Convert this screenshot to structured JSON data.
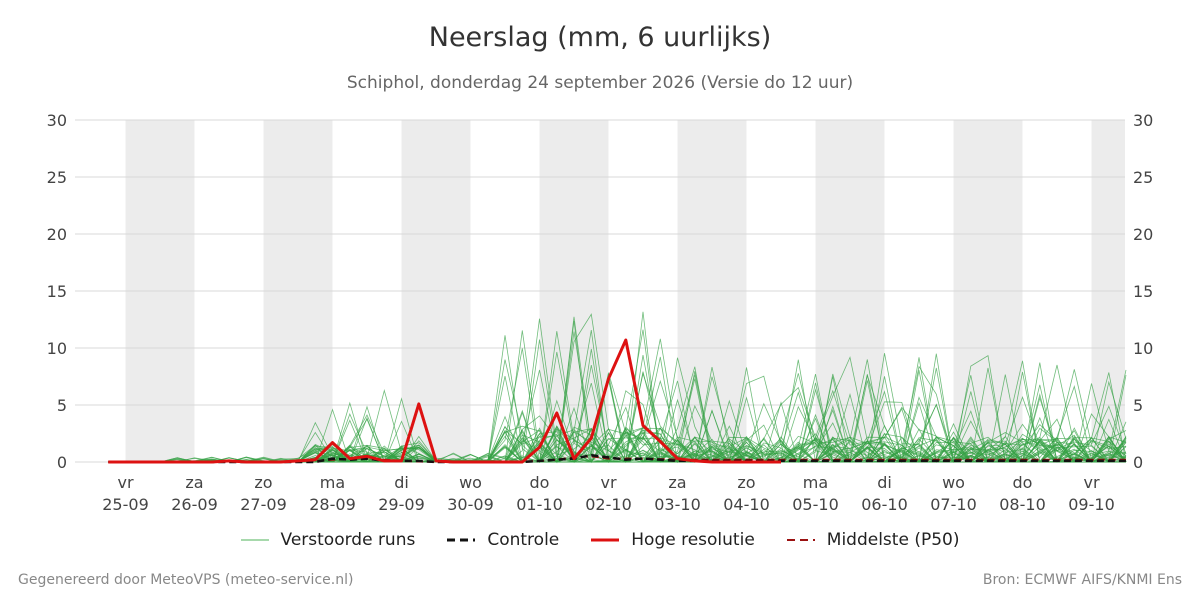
{
  "title": "Neerslag (mm, 6 uurlijks)",
  "subtitle": "Schiphol, donderdag 24 september 2026 (Versie do 12 uur)",
  "footer": {
    "left": "Gegenereerd door MeteoVPS (meteo-service.nl)",
    "right": "Bron: ECMWF AIFS/KNMI Ens"
  },
  "legend": [
    {
      "label": "Verstoorde runs",
      "color": "#2e9e3e",
      "style": "thin"
    },
    {
      "label": "Controle",
      "color": "#111111",
      "style": "dashed"
    },
    {
      "label": "Hoge resolutie",
      "color": "#dd1111",
      "style": "solid"
    },
    {
      "label": "Middelste (P50)",
      "color": "#9b1111",
      "style": "dashed"
    }
  ],
  "chart_data": {
    "type": "line",
    "ylim": [
      0,
      30
    ],
    "yticks": [
      0,
      5,
      10,
      15,
      20,
      25,
      30
    ],
    "xlim": [
      -0.25,
      14.5
    ],
    "x_step_days": 0.25,
    "grid": true,
    "weekend_shading": true,
    "shaded_day_spans": [
      [
        0,
        1
      ],
      [
        2,
        3
      ],
      [
        4,
        5
      ],
      [
        6,
        7
      ],
      [
        8,
        9
      ],
      [
        10,
        11
      ],
      [
        12,
        13
      ],
      [
        14,
        14.5
      ]
    ],
    "x_ticks": [
      {
        "day": "vr",
        "date": "25-09"
      },
      {
        "day": "za",
        "date": "26-09"
      },
      {
        "day": "zo",
        "date": "27-09"
      },
      {
        "day": "ma",
        "date": "28-09"
      },
      {
        "day": "di",
        "date": "29-09"
      },
      {
        "day": "wo",
        "date": "30-09"
      },
      {
        "day": "do",
        "date": "01-10"
      },
      {
        "day": "vr",
        "date": "02-10"
      },
      {
        "day": "za",
        "date": "03-10"
      },
      {
        "day": "zo",
        "date": "04-10"
      },
      {
        "day": "ma",
        "date": "05-10"
      },
      {
        "day": "di",
        "date": "06-10"
      },
      {
        "day": "wo",
        "date": "07-10"
      },
      {
        "day": "do",
        "date": "08-10"
      },
      {
        "day": "vr",
        "date": "09-10"
      }
    ],
    "series": [
      {
        "name": "Hoge resolutie",
        "color": "#dd1111",
        "dash": "",
        "width": 3,
        "x": [
          -0.25,
          0,
          0.25,
          0.5,
          0.75,
          1,
          1.25,
          1.5,
          1.75,
          2,
          2.25,
          2.5,
          2.75,
          3,
          3.25,
          3.5,
          3.75,
          4,
          4.25,
          4.5,
          4.75,
          5,
          5.25,
          5.5,
          5.75,
          6,
          6.25,
          6.5,
          6.75,
          7,
          7.25,
          7.5,
          7.75,
          8,
          8.25,
          8.5,
          8.75,
          9,
          9.25,
          9.5
        ],
        "values": [
          0,
          0,
          0,
          0,
          0,
          0,
          0,
          0.1,
          0,
          0,
          0,
          0.1,
          0.2,
          1.7,
          0.3,
          0.5,
          0.1,
          0.1,
          5.1,
          0.1,
          0,
          0,
          0,
          0,
          0,
          1.3,
          4.3,
          0.3,
          2.1,
          7.3,
          10.7,
          3.2,
          1.8,
          0.3,
          0.1,
          0,
          0,
          0,
          0,
          0
        ]
      },
      {
        "name": "Controle",
        "color": "#111111",
        "dash": "7,4",
        "width": 2.5,
        "x": [
          -0.25,
          0,
          0.25,
          0.5,
          0.75,
          1,
          1.25,
          1.5,
          1.75,
          2,
          2.25,
          2.5,
          2.75,
          3,
          3.25,
          3.5,
          3.75,
          4,
          4.25,
          4.5,
          4.75,
          5,
          5.25,
          5.5,
          5.75,
          6,
          6.25,
          6.5,
          6.75,
          7,
          7.25,
          7.5,
          7.75,
          8,
          8.5,
          9,
          9.5,
          10,
          10.5,
          11,
          11.5,
          12,
          12.5,
          13,
          13.5,
          14,
          14.5
        ],
        "values": [
          0,
          0,
          0,
          0,
          0,
          0,
          0,
          0,
          0,
          0,
          0,
          0,
          0,
          0.3,
          0.2,
          0.3,
          0.1,
          0.1,
          0.1,
          0,
          0,
          0,
          0,
          0,
          0,
          0.1,
          0.2,
          0.3,
          0.6,
          0.4,
          0.2,
          0.3,
          0.2,
          0.1,
          0.1,
          0.1,
          0.1,
          0.1,
          0.1,
          0.1,
          0.1,
          0.1,
          0.1,
          0.1,
          0.1,
          0.1,
          0.1
        ]
      },
      {
        "name": "Middelste (P50)",
        "color": "#9b1111",
        "dash": "7,4",
        "width": 2,
        "x": [
          -0.25,
          0,
          0.5,
          1,
          1.5,
          2,
          2.5,
          3,
          3.5,
          4,
          4.5,
          5,
          5.5,
          6,
          6.25,
          6.5,
          6.75,
          7,
          7.5,
          8,
          8.5,
          9,
          9.5,
          10,
          10.5,
          11,
          11.5,
          12,
          12.5,
          13,
          13.5,
          14,
          14.5
        ],
        "values": [
          0,
          0,
          0,
          0,
          0,
          0,
          0,
          0.2,
          0.3,
          0.1,
          0,
          0,
          0,
          0.1,
          0.2,
          0.4,
          0.5,
          0.3,
          0.3,
          0.2,
          0.2,
          0.2,
          0.2,
          0.2,
          0.2,
          0.2,
          0.2,
          0.2,
          0.2,
          0.2,
          0.2,
          0.2,
          0.2
        ]
      }
    ]
  }
}
